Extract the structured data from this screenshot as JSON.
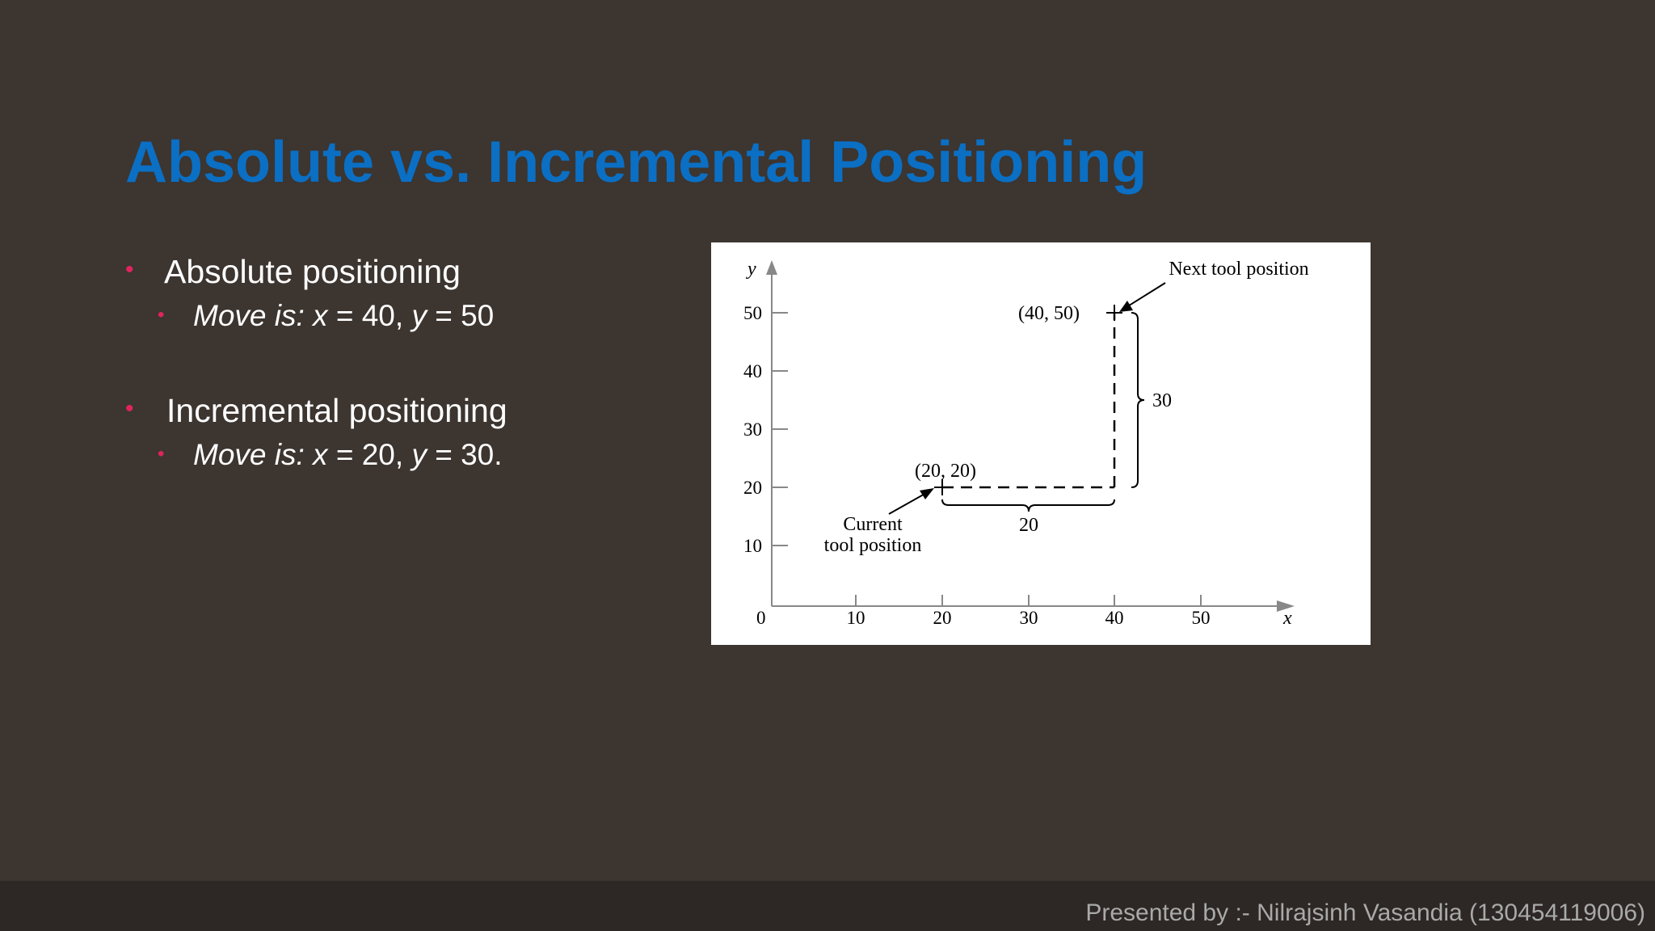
{
  "slide": {
    "title": "Absolute vs. Incremental Positioning",
    "bullets": [
      {
        "heading": "Absolute positioning",
        "sub_label": "Move is:",
        "sub_x_var": "x",
        "sub_x_val": " = 40, ",
        "sub_y_var": "y",
        "sub_y_val": " = 50"
      },
      {
        "heading": "Incremental positioning",
        "sub_label": "Move is:",
        "sub_x_var": "x",
        "sub_x_val": " = 20, ",
        "sub_y_var": "y",
        "sub_y_val": " = 30."
      }
    ],
    "footer": "Presented by :- Nilrajsinh Vasandia (130454119006)"
  },
  "diagram": {
    "x_axis_label": "x",
    "y_axis_label": "y",
    "origin_label": "0",
    "x_ticks": [
      "10",
      "20",
      "30",
      "40",
      "50"
    ],
    "y_ticks": [
      "10",
      "20",
      "30",
      "40",
      "50"
    ],
    "current_point_label": "(20, 20)",
    "next_point_label": "(40, 50)",
    "current_label_line1": "Current",
    "current_label_line2": "tool position",
    "next_label": "Next tool position",
    "dx_label": "20",
    "dy_label": "30",
    "line_color": "#000000",
    "axis_color": "#888888"
  }
}
